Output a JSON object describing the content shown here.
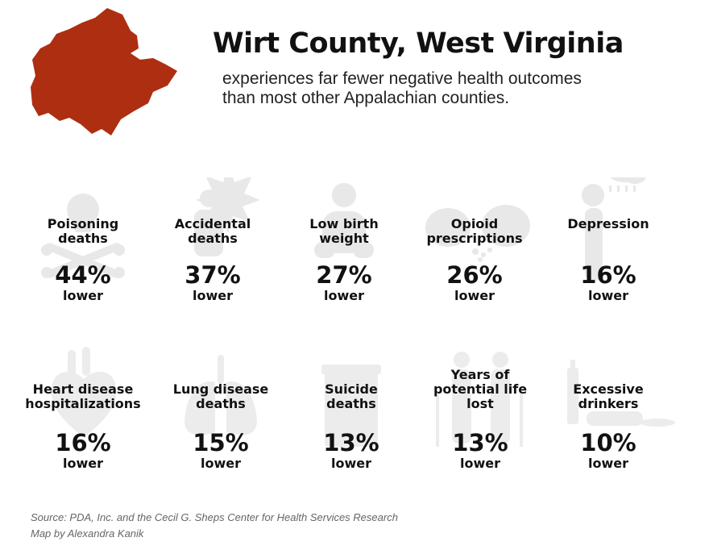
{
  "header": {
    "title": "Wirt County, West Virginia",
    "subtitle_lines": [
      "experiences far fewer negative health outcomes",
      "than most other Appalachian counties."
    ]
  },
  "colors": {
    "county": "#ae2e12",
    "text": "#111111",
    "icon": "#e6e6e6",
    "footer": "#666666"
  },
  "stats": [
    {
      "label_lines": [
        "Poisoning",
        "deaths"
      ],
      "value": "44%",
      "word": "lower",
      "icon": "skull-crossbones-icon"
    },
    {
      "label_lines": [
        "Accidental",
        "deaths"
      ],
      "value": "37%",
      "word": "lower",
      "icon": "explosion-person-icon"
    },
    {
      "label_lines": [
        "Low birth",
        "weight"
      ],
      "value": "27%",
      "word": "lower",
      "icon": "baby-icon"
    },
    {
      "label_lines": [
        "Opioid",
        "prescriptions"
      ],
      "value": "26%",
      "word": "lower",
      "icon": "pills-icon"
    },
    {
      "label_lines": [
        "Depression"
      ],
      "value": "16%",
      "word": "lower",
      "icon": "rain-cloud-person-icon"
    },
    {
      "label_lines": [
        "Heart disease",
        "hospitalizations"
      ],
      "value": "16%",
      "word": "lower",
      "icon": "heart-icon"
    },
    {
      "label_lines": [
        "Lung disease",
        "deaths"
      ],
      "value": "15%",
      "word": "lower",
      "icon": "lungs-icon"
    },
    {
      "label_lines": [
        "Suicide",
        "deaths"
      ],
      "value": "13%",
      "word": "lower",
      "icon": "pill-bottle-icon"
    },
    {
      "label_lines": [
        "Years of",
        "potential life",
        "lost"
      ],
      "value": "13%",
      "word": "lower",
      "icon": "elderly-couple-icon"
    },
    {
      "label_lines": [
        "Excessive",
        "drinkers"
      ],
      "value": "10%",
      "word": "lower",
      "icon": "spilled-bottle-icon"
    }
  ],
  "footer": {
    "source": "Source: PDA, Inc. and the Cecil G. Sheps Center for Health Services Research",
    "credit": "Map by Alexandra Kanik"
  }
}
